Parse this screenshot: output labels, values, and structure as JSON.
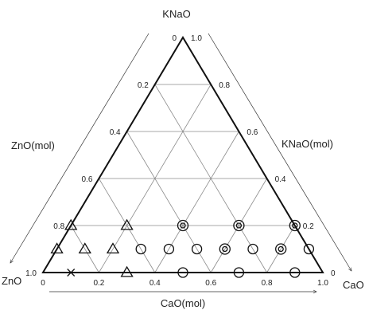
{
  "chart_data": {
    "type": "scatter",
    "diagram": "ternary",
    "vertices": {
      "top": "KNaO",
      "left": "ZnO",
      "right": "CaO"
    },
    "axes": {
      "left_edge": {
        "label": "ZnO(mol)",
        "component": "ZnO"
      },
      "right_edge": {
        "label": "KNaO(mol)",
        "component": "KNaO"
      },
      "bottom_edge": {
        "label": "CaO(mol)",
        "component": "CaO"
      }
    },
    "ticks": {
      "left": [
        "0",
        "0.2",
        "0.4",
        "0.6",
        "0.8",
        "1.0"
      ],
      "right": [
        "1.0",
        "0.8",
        "0.6",
        "0.4",
        "0.2",
        "0"
      ],
      "bottom": [
        "0",
        "0.2",
        "0.4",
        "0.6",
        "0.8",
        "1.0"
      ]
    },
    "grid_step": 0.2,
    "grid": true,
    "marker_types": [
      "cross",
      "triangle",
      "circle",
      "double-circle"
    ],
    "points": [
      {
        "CaO": 0.1,
        "KNaO": 0.0,
        "ZnO": 0.9,
        "marker": "cross"
      },
      {
        "CaO": 0.3,
        "KNaO": 0.0,
        "ZnO": 0.7,
        "marker": "triangle"
      },
      {
        "CaO": 0.5,
        "KNaO": 0.0,
        "ZnO": 0.5,
        "marker": "circle"
      },
      {
        "CaO": 0.7,
        "KNaO": 0.0,
        "ZnO": 0.3,
        "marker": "circle"
      },
      {
        "CaO": 0.9,
        "KNaO": 0.0,
        "ZnO": 0.1,
        "marker": "circle"
      },
      {
        "CaO": 0.1,
        "KNaO": 0.1,
        "ZnO": 0.8,
        "marker": "triangle"
      },
      {
        "CaO": 0.3,
        "KNaO": 0.1,
        "ZnO": 0.6,
        "marker": "circle"
      },
      {
        "CaO": 0.5,
        "KNaO": 0.1,
        "ZnO": 0.4,
        "marker": "circle"
      },
      {
        "CaO": 0.7,
        "KNaO": 0.1,
        "ZnO": 0.2,
        "marker": "circle"
      },
      {
        "CaO": 0.9,
        "KNaO": 0.1,
        "ZnO": 0.0,
        "marker": "circle"
      },
      {
        "CaO": 0.2,
        "KNaO": 0.1,
        "ZnO": 0.7,
        "marker": "triangle"
      },
      {
        "CaO": 0.2,
        "KNaO": 0.2,
        "ZnO": 0.6,
        "marker": "triangle"
      },
      {
        "CaO": 0.4,
        "KNaO": 0.1,
        "ZnO": 0.5,
        "marker": "circle"
      },
      {
        "CaO": 0.4,
        "KNaO": 0.2,
        "ZnO": 0.4,
        "marker": "double-circle"
      },
      {
        "CaO": 0.6,
        "KNaO": 0.1,
        "ZnO": 0.3,
        "marker": "double-circle"
      },
      {
        "CaO": 0.6,
        "KNaO": 0.2,
        "ZnO": 0.2,
        "marker": "double-circle"
      },
      {
        "CaO": 0.8,
        "KNaO": 0.1,
        "ZnO": 0.1,
        "marker": "double-circle"
      },
      {
        "CaO": 0.8,
        "KNaO": 0.2,
        "ZnO": 0.0,
        "marker": "double-circle"
      },
      {
        "CaO": 0.0,
        "KNaO": 0.2,
        "ZnO": 0.8,
        "marker": "triangle"
      },
      {
        "CaO": 0.0,
        "KNaO": 0.1,
        "ZnO": 0.9,
        "marker": "triangle"
      }
    ]
  }
}
